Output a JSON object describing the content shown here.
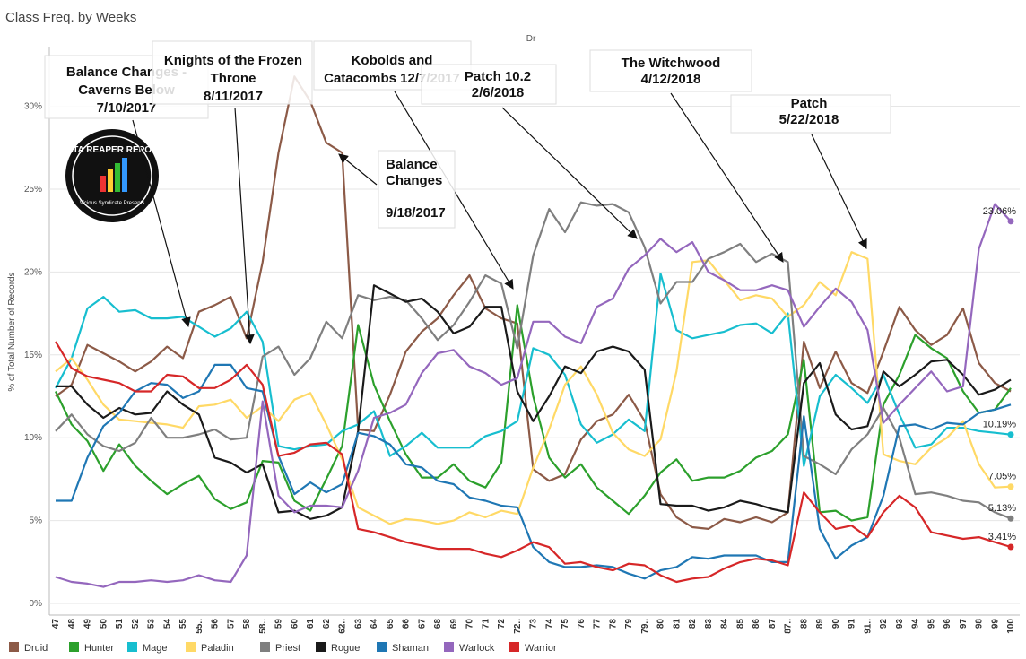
{
  "title": "Class Freq. by Weeks",
  "logo": {
    "name": "DATA REAPER REPORT",
    "tagline": "Vicious Syndicate Presents"
  },
  "chart_data": {
    "type": "line",
    "column_header": "Dr",
    "y_label": "% of Total Number of Records",
    "categories": [
      "47",
      "48",
      "49",
      "50",
      "51",
      "52",
      "53",
      "54",
      "55",
      "55..",
      "56",
      "57",
      "58",
      "58..",
      "59",
      "60",
      "61",
      "62",
      "62..",
      "63",
      "64",
      "65",
      "66",
      "67",
      "68",
      "69",
      "70",
      "71",
      "72",
      "72..",
      "73",
      "74",
      "75",
      "76",
      "77",
      "78",
      "79",
      "79..",
      "80",
      "81",
      "82",
      "83",
      "84",
      "85",
      "86",
      "87",
      "87..",
      "88",
      "89",
      "90",
      "91",
      "91..",
      "92",
      "93",
      "94",
      "95",
      "96",
      "97",
      "98",
      "99",
      "100"
    ],
    "ylim": [
      -0.7,
      33.6
    ],
    "yticks": [
      {
        "value": 0,
        "label": "0%"
      },
      {
        "value": 5,
        "label": "5%"
      },
      {
        "value": 10,
        "label": "10%"
      },
      {
        "value": 15,
        "label": "15%"
      },
      {
        "value": 20,
        "label": "20%"
      },
      {
        "value": 25,
        "label": "25%"
      },
      {
        "value": 30,
        "label": "30%"
      }
    ],
    "grid": true,
    "legend": "bottom",
    "series": [
      {
        "name": "Druid",
        "color": "#8c5a47",
        "values": [
          12.5,
          13.2,
          15.6,
          15.1,
          14.6,
          14.0,
          14.6,
          15.5,
          14.8,
          17.6,
          18.0,
          18.5,
          16.0,
          20.6,
          27.2,
          31.8,
          30.3,
          27.8,
          27.2,
          10.5,
          10.4,
          12.6,
          15.2,
          16.4,
          17.2,
          18.6,
          19.8,
          17.8,
          17.2,
          16.9,
          8.1,
          7.4,
          7.8,
          9.9,
          11.0,
          11.4,
          12.6,
          11.0,
          6.6,
          5.2,
          4.6,
          4.5,
          5.1,
          4.9,
          5.2,
          4.9,
          5.5,
          15.8,
          13.0,
          15.2,
          13.3,
          12.7,
          15.2,
          17.9,
          16.5,
          15.6,
          16.2,
          17.8,
          14.5,
          13.3,
          12.8
        ]
      },
      {
        "name": "Hunter",
        "color": "#2ca02c",
        "values": [
          12.8,
          10.8,
          9.8,
          8.0,
          9.6,
          8.3,
          7.4,
          6.6,
          7.2,
          7.7,
          6.3,
          5.7,
          6.1,
          8.6,
          8.5,
          6.2,
          5.6,
          7.5,
          9.5,
          16.8,
          13.2,
          11.0,
          9.0,
          7.6,
          7.6,
          8.4,
          7.4,
          7.0,
          8.5,
          18.0,
          12.5,
          8.8,
          7.6,
          8.4,
          7.0,
          6.2,
          5.4,
          6.5,
          7.9,
          8.7,
          7.4,
          7.6,
          7.6,
          8.0,
          8.8,
          9.2,
          10.2,
          14.7,
          5.5,
          5.6,
          5.0,
          5.2,
          12.0,
          13.8,
          16.2,
          15.4,
          14.8,
          12.8,
          11.5,
          11.7,
          13.0
        ]
      },
      {
        "name": "Mage",
        "color": "#17becf",
        "values": [
          13.0,
          14.8,
          17.8,
          18.5,
          17.6,
          17.7,
          17.2,
          17.2,
          17.3,
          16.7,
          16.1,
          16.6,
          17.6,
          15.8,
          9.5,
          9.3,
          9.5,
          9.6,
          10.4,
          10.8,
          11.6,
          8.9,
          9.5,
          10.3,
          9.4,
          9.4,
          9.4,
          10.1,
          10.4,
          11.0,
          15.4,
          15.0,
          13.8,
          10.8,
          9.7,
          10.2,
          11.1,
          10.4,
          19.9,
          16.5,
          16.0,
          16.2,
          16.4,
          16.8,
          16.9,
          16.3,
          17.5,
          8.3,
          12.5,
          13.8,
          13.0,
          12.1,
          13.8,
          11.4,
          9.4,
          9.6,
          10.6,
          10.6,
          10.4,
          10.3,
          10.19
        ],
        "value_labels": [
          null,
          null,
          null,
          null,
          null,
          null,
          null,
          null,
          null,
          null,
          null,
          null,
          null,
          null,
          null,
          null,
          null,
          null,
          null,
          null,
          null,
          null,
          null,
          null,
          null,
          null,
          null,
          null,
          null,
          null,
          null,
          null,
          null,
          null,
          null,
          null,
          null,
          null,
          null,
          null,
          null,
          null,
          null,
          null,
          null,
          null,
          null,
          null,
          null,
          null,
          null,
          null,
          null,
          null,
          null,
          null,
          null,
          null,
          null,
          null,
          "10.19%"
        ]
      },
      {
        "name": "Paladin",
        "color": "#ffd966",
        "values": [
          14.0,
          14.8,
          13.5,
          12.0,
          11.1,
          11.0,
          10.9,
          10.8,
          10.6,
          11.9,
          12.0,
          12.3,
          11.2,
          11.9,
          11.0,
          12.3,
          12.7,
          10.8,
          8.7,
          5.8,
          5.3,
          4.8,
          5.1,
          5.0,
          4.8,
          5.0,
          5.5,
          5.2,
          5.6,
          5.4,
          8.2,
          10.5,
          13.2,
          14.3,
          12.6,
          10.3,
          9.3,
          8.9,
          9.9,
          14.0,
          20.6,
          20.7,
          19.5,
          18.3,
          18.6,
          18.4,
          17.3,
          18.0,
          19.4,
          18.6,
          21.2,
          20.8,
          9.0,
          8.6,
          8.4,
          9.4,
          10.0,
          11.0,
          8.4,
          7.0,
          7.05
        ],
        "value_labels": [
          null,
          null,
          null,
          null,
          null,
          null,
          null,
          null,
          null,
          null,
          null,
          null,
          null,
          null,
          null,
          null,
          null,
          null,
          null,
          null,
          null,
          null,
          null,
          null,
          null,
          null,
          null,
          null,
          null,
          null,
          null,
          null,
          null,
          null,
          null,
          null,
          null,
          null,
          null,
          null,
          null,
          null,
          null,
          null,
          null,
          null,
          null,
          null,
          null,
          null,
          null,
          null,
          null,
          null,
          null,
          null,
          null,
          null,
          null,
          null,
          "7.05%"
        ]
      },
      {
        "name": "Priest",
        "color": "#7f7f7f",
        "values": [
          10.4,
          11.4,
          10.2,
          9.5,
          9.2,
          9.7,
          11.2,
          10.0,
          10.0,
          10.2,
          10.5,
          9.9,
          10.0,
          14.9,
          15.5,
          13.8,
          14.8,
          17.0,
          16.0,
          18.6,
          18.3,
          18.5,
          18.3,
          17.2,
          15.9,
          16.8,
          18.2,
          19.8,
          19.3,
          15.4,
          21.0,
          23.8,
          22.4,
          24.2,
          24.0,
          24.1,
          23.6,
          21.5,
          18.1,
          19.4,
          19.4,
          20.8,
          21.2,
          21.7,
          20.6,
          21.1,
          20.6,
          8.9,
          8.4,
          7.8,
          9.3,
          10.2,
          11.8,
          10.0,
          6.6,
          6.7,
          6.5,
          6.2,
          6.1,
          5.5,
          5.13
        ],
        "value_labels": [
          null,
          null,
          null,
          null,
          null,
          null,
          null,
          null,
          null,
          null,
          null,
          null,
          null,
          null,
          null,
          null,
          null,
          null,
          null,
          null,
          null,
          null,
          null,
          null,
          null,
          null,
          null,
          null,
          null,
          null,
          null,
          null,
          null,
          null,
          null,
          null,
          null,
          null,
          null,
          null,
          null,
          null,
          null,
          null,
          null,
          null,
          null,
          null,
          null,
          null,
          null,
          null,
          null,
          null,
          null,
          null,
          null,
          null,
          null,
          null,
          "5.13%"
        ]
      },
      {
        "name": "Rogue",
        "color": "#1a1a1a",
        "values": [
          13.1,
          13.1,
          12.0,
          11.2,
          11.8,
          11.4,
          11.5,
          12.8,
          12.0,
          11.4,
          8.8,
          8.5,
          7.9,
          8.4,
          5.5,
          5.6,
          5.1,
          5.3,
          5.8,
          10.4,
          19.2,
          18.7,
          18.2,
          18.4,
          17.6,
          16.3,
          16.7,
          17.9,
          17.9,
          12.8,
          11.0,
          12.5,
          14.3,
          13.9,
          15.2,
          15.5,
          15.2,
          14.1,
          6.0,
          5.9,
          5.9,
          5.6,
          5.8,
          6.2,
          6.0,
          5.7,
          5.5,
          13.3,
          14.5,
          11.4,
          10.5,
          10.7,
          14.0,
          13.1,
          13.8,
          14.6,
          14.7,
          13.8,
          12.6,
          12.9,
          13.5
        ]
      },
      {
        "name": "Shaman",
        "color": "#1f77b4",
        "values": [
          6.2,
          6.2,
          8.8,
          10.7,
          11.5,
          12.8,
          13.3,
          13.2,
          12.4,
          12.8,
          14.4,
          14.4,
          13.0,
          12.8,
          8.9,
          6.6,
          7.3,
          6.7,
          7.2,
          10.3,
          10.1,
          9.6,
          8.4,
          8.2,
          7.4,
          7.2,
          6.4,
          6.2,
          5.9,
          5.8,
          3.4,
          2.5,
          2.2,
          2.2,
          2.3,
          2.2,
          1.8,
          1.5,
          2.0,
          2.2,
          2.8,
          2.7,
          2.9,
          2.9,
          2.9,
          2.5,
          2.5,
          11.3,
          4.5,
          2.7,
          3.5,
          4.0,
          6.5,
          10.7,
          10.8,
          10.5,
          10.9,
          10.8,
          11.5,
          11.7,
          12.0
        ]
      },
      {
        "name": "Warlock",
        "color": "#9467bd",
        "values": [
          1.6,
          1.3,
          1.2,
          1.0,
          1.3,
          1.3,
          1.4,
          1.3,
          1.4,
          1.7,
          1.4,
          1.3,
          2.9,
          12.2,
          6.5,
          5.5,
          5.9,
          5.9,
          5.8,
          8.0,
          11.2,
          11.5,
          12.0,
          13.9,
          15.1,
          15.3,
          14.3,
          13.9,
          13.2,
          13.6,
          17.0,
          17.0,
          16.1,
          15.7,
          17.9,
          18.4,
          20.2,
          21.0,
          22.0,
          21.2,
          21.8,
          20.0,
          19.5,
          18.9,
          18.9,
          19.2,
          18.9,
          16.7,
          17.9,
          19.0,
          18.2,
          16.5,
          10.9,
          12.0,
          13.0,
          14.0,
          12.8,
          13.1,
          21.4,
          24.1,
          23.06
        ],
        "value_labels": [
          null,
          null,
          null,
          null,
          null,
          null,
          null,
          null,
          null,
          null,
          null,
          null,
          null,
          null,
          null,
          null,
          null,
          null,
          null,
          null,
          null,
          null,
          null,
          null,
          null,
          null,
          null,
          null,
          null,
          null,
          null,
          null,
          null,
          null,
          null,
          null,
          null,
          null,
          null,
          null,
          null,
          null,
          null,
          null,
          null,
          null,
          null,
          null,
          null,
          null,
          null,
          null,
          null,
          null,
          null,
          null,
          null,
          null,
          null,
          null,
          "23.06%"
        ]
      },
      {
        "name": "Warrior",
        "color": "#d62728",
        "values": [
          15.8,
          14.2,
          13.7,
          13.5,
          13.3,
          12.8,
          12.8,
          13.8,
          13.7,
          13.0,
          13.0,
          13.5,
          14.4,
          13.2,
          8.9,
          9.1,
          9.6,
          9.7,
          9.0,
          4.5,
          4.3,
          4.0,
          3.7,
          3.5,
          3.3,
          3.3,
          3.3,
          3.0,
          2.8,
          3.2,
          3.7,
          3.4,
          2.4,
          2.5,
          2.2,
          2.0,
          2.4,
          2.3,
          1.7,
          1.3,
          1.5,
          1.6,
          2.1,
          2.5,
          2.7,
          2.6,
          2.3,
          6.7,
          5.5,
          4.5,
          4.7,
          4.0,
          5.5,
          6.5,
          5.8,
          4.3,
          4.1,
          3.9,
          4.0,
          3.7,
          3.41
        ],
        "value_labels": [
          null,
          null,
          null,
          null,
          null,
          null,
          null,
          null,
          null,
          null,
          null,
          null,
          null,
          null,
          null,
          null,
          null,
          null,
          null,
          null,
          null,
          null,
          null,
          null,
          null,
          null,
          null,
          null,
          null,
          null,
          null,
          null,
          null,
          null,
          null,
          null,
          null,
          null,
          null,
          null,
          null,
          null,
          null,
          null,
          null,
          null,
          null,
          null,
          null,
          null,
          null,
          null,
          null,
          null,
          null,
          null,
          null,
          null,
          null,
          null,
          "3.41%"
        ]
      }
    ],
    "annotations": [
      {
        "lines": [
          "Balance Changes -",
          "Caverns Below",
          "7/10/2017"
        ]
      },
      {
        "lines": [
          "Knights of the Frozen",
          "Throne",
          "8/11/2017"
        ]
      },
      {
        "lines": [
          "Kobolds and",
          "Catacombs 12/7/2017"
        ]
      },
      {
        "lines": [
          "Patch 10.2",
          "2/6/2018"
        ]
      },
      {
        "lines": [
          "The Witchwood",
          "4/12/2018"
        ]
      },
      {
        "lines": [
          "Patch",
          "5/22/2018"
        ]
      },
      {
        "lines": [
          "Balance",
          "Changes",
          "9/18/2017"
        ]
      }
    ]
  }
}
